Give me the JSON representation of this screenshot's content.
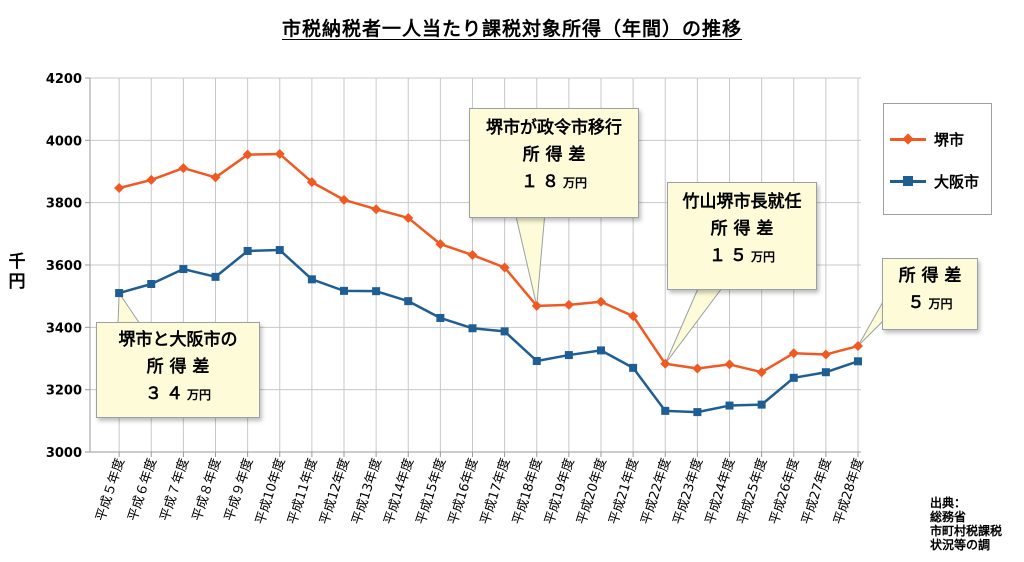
{
  "chart_data": {
    "type": "line",
    "title": "市税納税者一人当たり課税対象所得（年間）の推移",
    "ylabel": "千円",
    "ylim": [
      3000,
      4200
    ],
    "yticks": [
      3000,
      3200,
      3400,
      3600,
      3800,
      4000,
      4200
    ],
    "grid": true,
    "legend_position": "right",
    "categories": [
      "平成５年度",
      "平成６年度",
      "平成７年度",
      "平成８年度",
      "平成９年度",
      "平成10年度",
      "平成11年度",
      "平成12年度",
      "平成13年度",
      "平成14年度",
      "平成15年度",
      "平成16年度",
      "平成17年度",
      "平成18年度",
      "平成19年度",
      "平成20年度",
      "平成21年度",
      "平成22年度",
      "平成23年度",
      "平成24年度",
      "平成25年度",
      "平成26年度",
      "平成27年度",
      "平成28年度"
    ],
    "series": [
      {
        "name": "堺市",
        "color": "#f05a22",
        "marker": "diamond",
        "values": [
          3847,
          3873,
          3911,
          3881,
          3954,
          3956,
          3866,
          3809,
          3779,
          3751,
          3667,
          3632,
          3592,
          3469,
          3472,
          3482,
          3436,
          3283,
          3268,
          3281,
          3256,
          3317,
          3313,
          3340
        ]
      },
      {
        "name": "大阪市",
        "color": "#1f5e93",
        "marker": "square",
        "values": [
          3510,
          3539,
          3587,
          3562,
          3645,
          3648,
          3554,
          3517,
          3516,
          3484,
          3430,
          3397,
          3387,
          3292,
          3311,
          3326,
          3270,
          3132,
          3128,
          3149,
          3152,
          3238,
          3256,
          3291
        ]
      }
    ],
    "annotations": [
      {
        "id": "callout1",
        "lines": [
          "堺市と大阪市の",
          "所 得 差"
        ],
        "amount": "３４",
        "unit": "万円"
      },
      {
        "id": "callout2",
        "lines": [
          "堺市が政令市移行",
          "所 得 差"
        ],
        "amount": "１８",
        "unit": "万円"
      },
      {
        "id": "callout3",
        "lines": [
          "竹山堺市長就任",
          "所 得 差"
        ],
        "amount": "１５",
        "unit": "万円"
      },
      {
        "id": "callout4",
        "lines": [
          "所 得 差"
        ],
        "amount": "５",
        "unit": "万円"
      }
    ]
  },
  "source": {
    "label": "出典：",
    "lines": [
      "総務省",
      "市町村税課税",
      "状況等の調"
    ]
  }
}
